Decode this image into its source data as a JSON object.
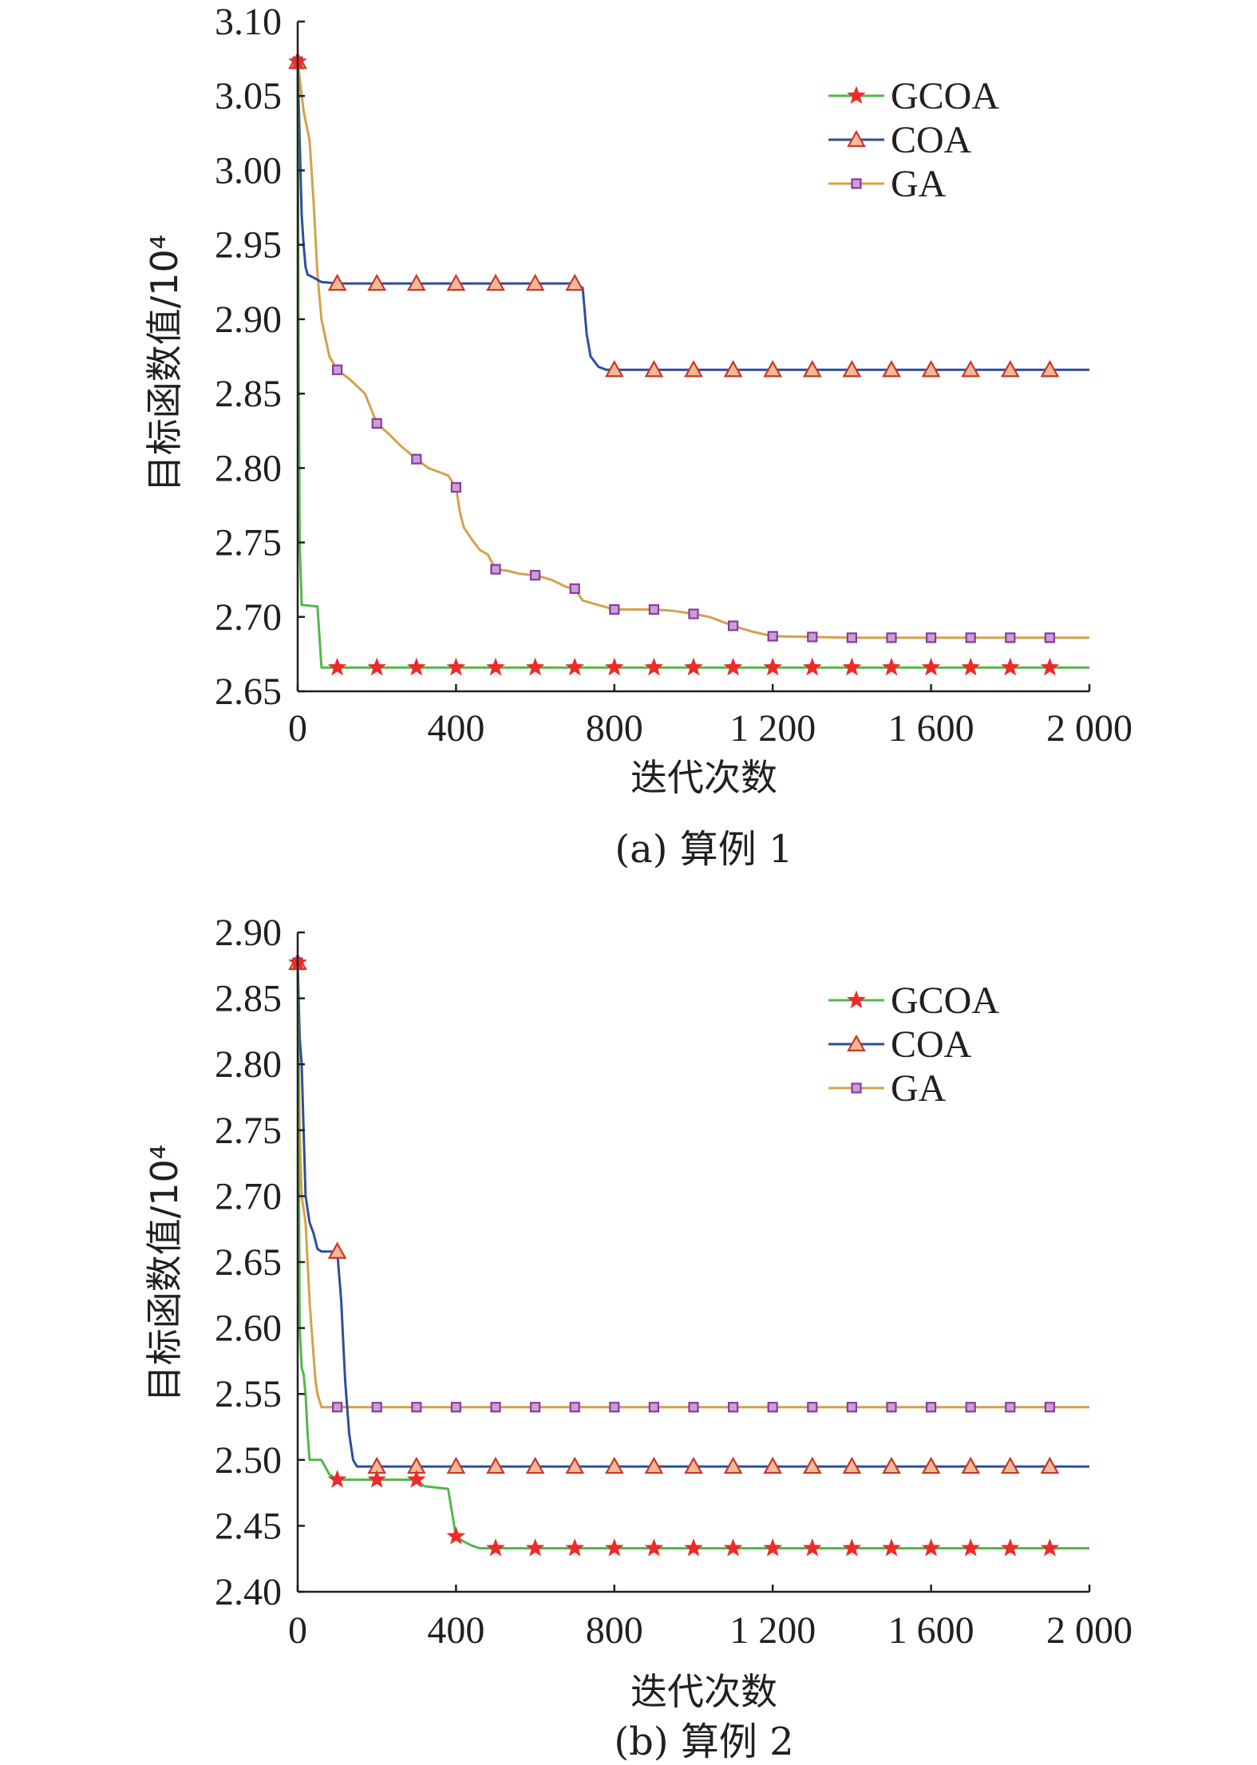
{
  "colors": {
    "GCOA": "#52b848",
    "COA": "#2e4e9c",
    "GA": "#d4a24a",
    "star": "#ee2a2a",
    "triangle_fill": "#f4b999",
    "triangle_stroke": "#c83a26",
    "square_fill": "#c8a0d8",
    "square_stroke": "#8c3a9c",
    "axis": "#231f20"
  },
  "chart_data": [
    {
      "type": "line",
      "caption": "(a) 算例 1",
      "xlabel": "迭代次数",
      "ylabel": "目标函数值/10⁴",
      "xlim": [
        0,
        2000
      ],
      "ylim": [
        2.65,
        3.1
      ],
      "x_ticks": [
        0,
        400,
        800,
        1200,
        1600,
        2000
      ],
      "x_tick_labels": [
        "0",
        "400",
        "800",
        "1 200",
        "1 600",
        "2 000"
      ],
      "y_ticks": [
        2.65,
        2.7,
        2.75,
        2.8,
        2.85,
        2.9,
        2.95,
        3.0,
        3.05,
        3.1
      ],
      "y_tick_labels": [
        "2.65",
        "2.70",
        "2.75",
        "2.80",
        "2.85",
        "2.90",
        "2.95",
        "3.00",
        "3.05",
        "3.10"
      ],
      "legend": [
        "GCOA",
        "COA",
        "GA"
      ],
      "legend_position": "top-right",
      "grid": false,
      "series": [
        {
          "name": "GCOA",
          "marker": "star",
          "x": [
            0,
            2,
            5,
            10,
            15,
            50,
            60,
            100,
            300,
            600,
            1000,
            1500,
            2000
          ],
          "values": [
            3.073,
            2.9,
            2.75,
            2.708,
            2.708,
            2.707,
            2.666,
            2.666,
            2.666,
            2.666,
            2.666,
            2.666,
            2.666
          ],
          "marker_x": [
            0,
            100,
            200,
            300,
            400,
            500,
            600,
            700,
            800,
            900,
            1000,
            1100,
            1200,
            1300,
            1400,
            1500,
            1600,
            1700,
            1800,
            1900
          ]
        },
        {
          "name": "COA",
          "marker": "triangle",
          "x": [
            0,
            5,
            10,
            15,
            20,
            25,
            40,
            60,
            100,
            300,
            500,
            700,
            720,
            730,
            740,
            760,
            780,
            800,
            1000,
            1500,
            2000
          ],
          "values": [
            3.073,
            3.02,
            2.97,
            2.95,
            2.935,
            2.93,
            2.928,
            2.925,
            2.924,
            2.924,
            2.924,
            2.924,
            2.921,
            2.89,
            2.875,
            2.868,
            2.866,
            2.866,
            2.866,
            2.866,
            2.866
          ],
          "marker_x": [
            0,
            100,
            200,
            300,
            400,
            500,
            600,
            700,
            800,
            900,
            1000,
            1100,
            1200,
            1300,
            1400,
            1500,
            1600,
            1700,
            1800,
            1900
          ]
        },
        {
          "name": "GA",
          "marker": "square",
          "x": [
            0,
            15,
            30,
            40,
            50,
            60,
            80,
            100,
            130,
            150,
            170,
            200,
            230,
            260,
            300,
            330,
            360,
            380,
            400,
            410,
            420,
            440,
            460,
            480,
            500,
            530,
            560,
            600,
            640,
            680,
            700,
            720,
            760,
            800,
            860,
            900,
            950,
            1000,
            1040,
            1080,
            1100,
            1150,
            1200,
            1400,
            1600,
            2000
          ],
          "values": [
            3.073,
            3.04,
            3.02,
            2.98,
            2.93,
            2.9,
            2.875,
            2.866,
            2.86,
            2.855,
            2.85,
            2.83,
            2.823,
            2.815,
            2.806,
            2.8,
            2.797,
            2.795,
            2.787,
            2.77,
            2.76,
            2.752,
            2.745,
            2.742,
            2.732,
            2.731,
            2.729,
            2.728,
            2.725,
            2.72,
            2.719,
            2.711,
            2.708,
            2.705,
            2.705,
            2.705,
            2.704,
            2.702,
            2.7,
            2.696,
            2.694,
            2.69,
            2.687,
            2.686,
            2.686,
            2.686
          ],
          "marker_x": [
            0,
            100,
            200,
            300,
            400,
            500,
            600,
            700,
            800,
            900,
            1000,
            1100,
            1200,
            1300,
            1400,
            1500,
            1600,
            1700,
            1800,
            1900
          ]
        }
      ]
    },
    {
      "type": "line",
      "caption": "(b) 算例 2",
      "xlabel": "迭代次数",
      "ylabel": "目标函数值/10⁴",
      "xlim": [
        0,
        2000
      ],
      "ylim": [
        2.4,
        2.9
      ],
      "x_ticks": [
        0,
        400,
        800,
        1200,
        1600,
        2000
      ],
      "x_tick_labels": [
        "0",
        "400",
        "800",
        "1 200",
        "1 600",
        "2 000"
      ],
      "y_ticks": [
        2.4,
        2.45,
        2.5,
        2.55,
        2.6,
        2.65,
        2.7,
        2.75,
        2.8,
        2.85,
        2.9
      ],
      "y_tick_labels": [
        "2.40",
        "2.45",
        "2.50",
        "2.55",
        "2.60",
        "2.65",
        "2.70",
        "2.75",
        "2.80",
        "2.85",
        "2.90"
      ],
      "legend": [
        "GCOA",
        "COA",
        "GA"
      ],
      "legend_position": "top-right",
      "grid": false,
      "series": [
        {
          "name": "GCOA",
          "marker": "star",
          "x": [
            0,
            5,
            10,
            15,
            20,
            25,
            30,
            60,
            80,
            100,
            300,
            320,
            380,
            390,
            400,
            420,
            440,
            460,
            500,
            1000,
            1500,
            2000
          ],
          "values": [
            2.877,
            2.6,
            2.57,
            2.565,
            2.55,
            2.52,
            2.5,
            2.5,
            2.489,
            2.485,
            2.485,
            2.48,
            2.478,
            2.46,
            2.442,
            2.438,
            2.435,
            2.433,
            2.433,
            2.433,
            2.433,
            2.433
          ],
          "marker_x": [
            0,
            100,
            200,
            300,
            400,
            500,
            600,
            700,
            800,
            900,
            1000,
            1100,
            1200,
            1300,
            1400,
            1500,
            1600,
            1700,
            1800,
            1900
          ]
        },
        {
          "name": "COA",
          "marker": "triangle",
          "x": [
            0,
            5,
            10,
            15,
            20,
            30,
            40,
            50,
            60,
            100,
            110,
            115,
            120,
            125,
            130,
            140,
            150,
            160,
            200,
            1000,
            1500,
            2000
          ],
          "values": [
            2.877,
            2.82,
            2.8,
            2.75,
            2.7,
            2.68,
            2.672,
            2.66,
            2.658,
            2.658,
            2.62,
            2.59,
            2.56,
            2.54,
            2.52,
            2.5,
            2.495,
            2.495,
            2.495,
            2.495,
            2.495,
            2.495
          ],
          "marker_x": [
            0,
            100,
            200,
            300,
            400,
            500,
            600,
            700,
            800,
            900,
            1000,
            1100,
            1200,
            1300,
            1400,
            1500,
            1600,
            1700,
            1800,
            1900
          ]
        },
        {
          "name": "GA",
          "marker": "square",
          "x": [
            0,
            5,
            10,
            20,
            30,
            40,
            45,
            50,
            60,
            100,
            1000,
            1500,
            2000
          ],
          "values": [
            2.877,
            2.75,
            2.7,
            2.68,
            2.62,
            2.58,
            2.56,
            2.55,
            2.54,
            2.54,
            2.54,
            2.54,
            2.54
          ],
          "marker_x": [
            0,
            100,
            200,
            300,
            400,
            500,
            600,
            700,
            800,
            900,
            1000,
            1100,
            1200,
            1300,
            1400,
            1500,
            1600,
            1700,
            1800,
            1900
          ]
        }
      ]
    }
  ]
}
